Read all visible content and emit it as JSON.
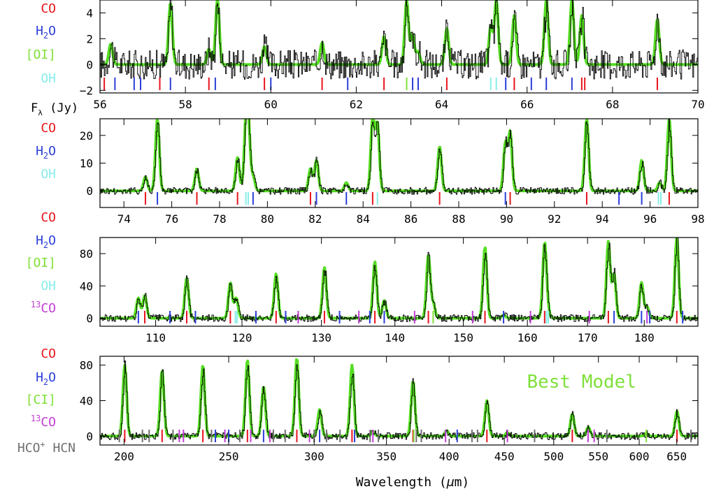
{
  "figure": {
    "flux_label": "F",
    "flux_label_sub": "λ",
    "flux_label_unit": " (Jy)",
    "xlabel_prefix": "Wavelength (",
    "xlabel_mu": "μ",
    "xlabel_suffix": "m)",
    "annotation": "Best Model"
  },
  "colors": {
    "co": "#e8141e",
    "h2o": "#2a3fd8",
    "oi": "#7fe03a",
    "oh": "#88eee8",
    "c13o": "#c33cd6",
    "hcn": "#707070",
    "observed": "#000000",
    "model": "#55dd22"
  },
  "chart_data": [
    {
      "type": "line",
      "panel": "56-70 um",
      "xlim": [
        56,
        70
      ],
      "ylim": [
        -2.2,
        5
      ],
      "xticks": [
        "56",
        "58",
        "60",
        "62",
        "64",
        "66",
        "68",
        "70"
      ],
      "yticks": [
        "−2",
        "0",
        "2",
        "4"
      ],
      "species_labels": [
        {
          "text": "CO",
          "color_key": "co"
        },
        {
          "text": "H",
          "sub": "2",
          "tail": "O",
          "color_key": "h2o"
        },
        {
          "text": "[OI]",
          "color_key": "oi"
        },
        {
          "text": "OH",
          "color_key": "oh"
        }
      ],
      "lines": [
        {
          "x": 56.25,
          "h": 1.6,
          "sp": "co"
        },
        {
          "x": 57.65,
          "h": 4.8,
          "sp": "co"
        },
        {
          "x": 58.55,
          "h": 1.2,
          "sp": "co"
        },
        {
          "x": 58.75,
          "h": 5.0,
          "sp": "co"
        },
        {
          "x": 59.85,
          "h": 1.4,
          "sp": "co"
        },
        {
          "x": 61.2,
          "h": 1.7,
          "sp": "co"
        },
        {
          "x": 62.65,
          "h": 2.2,
          "sp": "co"
        },
        {
          "x": 63.18,
          "h": 5.0,
          "sp": "oi"
        },
        {
          "x": 63.32,
          "h": 2.3,
          "sp": "h2o"
        },
        {
          "x": 63.45,
          "h": 1.0,
          "sp": "h2o"
        },
        {
          "x": 64.12,
          "h": 2.8,
          "sp": "co"
        },
        {
          "x": 65.15,
          "h": 3.0,
          "sp": "oh"
        },
        {
          "x": 65.28,
          "h": 5.0,
          "sp": "oh"
        },
        {
          "x": 65.7,
          "h": 3.8,
          "sp": "co"
        },
        {
          "x": 66.45,
          "h": 5.0,
          "sp": "h2o"
        },
        {
          "x": 67.05,
          "h": 5.0,
          "sp": "h2o"
        },
        {
          "x": 67.28,
          "h": 3.8,
          "sp": "co"
        },
        {
          "x": 69.05,
          "h": 3.5,
          "sp": "co"
        }
      ],
      "ticks": [
        {
          "x": 56.1,
          "sp": "co"
        },
        {
          "x": 56.35,
          "sp": "h2o"
        },
        {
          "x": 56.8,
          "sp": "h2o"
        },
        {
          "x": 56.95,
          "sp": "h2o"
        },
        {
          "x": 57.4,
          "sp": "co"
        },
        {
          "x": 57.65,
          "sp": "h2o"
        },
        {
          "x": 58.55,
          "sp": "co"
        },
        {
          "x": 58.7,
          "sp": "h2o"
        },
        {
          "x": 59.85,
          "sp": "co"
        },
        {
          "x": 60.0,
          "sp": "h2o"
        },
        {
          "x": 61.2,
          "sp": "co"
        },
        {
          "x": 61.8,
          "sp": "h2o"
        },
        {
          "x": 62.65,
          "sp": "co"
        },
        {
          "x": 63.18,
          "sp": "oi"
        },
        {
          "x": 63.32,
          "sp": "h2o"
        },
        {
          "x": 63.45,
          "sp": "h2o"
        },
        {
          "x": 64.12,
          "sp": "co"
        },
        {
          "x": 65.15,
          "sp": "oh"
        },
        {
          "x": 65.28,
          "sp": "oh"
        },
        {
          "x": 65.5,
          "sp": "h2o"
        },
        {
          "x": 65.7,
          "sp": "co"
        },
        {
          "x": 66.1,
          "sp": "h2o"
        },
        {
          "x": 66.45,
          "sp": "h2o"
        },
        {
          "x": 67.05,
          "sp": "h2o"
        },
        {
          "x": 67.28,
          "sp": "co"
        },
        {
          "x": 67.35,
          "sp": "co"
        },
        {
          "x": 69.05,
          "sp": "co"
        }
      ]
    },
    {
      "type": "line",
      "panel": "73-98 um",
      "xlim": [
        73,
        98
      ],
      "ylim": [
        -6,
        26
      ],
      "xticks": [
        "74",
        "76",
        "78",
        "80",
        "82",
        "84",
        "86",
        "88",
        "90",
        "92",
        "94",
        "96",
        "98"
      ],
      "yticks": [
        "0",
        "10",
        "20"
      ],
      "species_labels": [
        {
          "text": "CO",
          "color_key": "co"
        },
        {
          "text": "H",
          "sub": "2",
          "tail": "O",
          "color_key": "h2o"
        },
        {
          "text": "OH",
          "color_key": "oh"
        }
      ],
      "lines": [
        {
          "x": 74.9,
          "h": 5,
          "sp": "co"
        },
        {
          "x": 75.4,
          "h": 26,
          "sp": "h2o"
        },
        {
          "x": 77.05,
          "h": 8,
          "sp": "co"
        },
        {
          "x": 78.75,
          "h": 12,
          "sp": "co"
        },
        {
          "x": 79.1,
          "h": 20,
          "sp": "oh"
        },
        {
          "x": 79.2,
          "h": 21,
          "sp": "oh"
        },
        {
          "x": 79.4,
          "h": 5,
          "sp": "h2o"
        },
        {
          "x": 81.8,
          "h": 8,
          "sp": "co"
        },
        {
          "x": 82.05,
          "h": 11,
          "sp": "h2o"
        },
        {
          "x": 83.3,
          "h": 3,
          "sp": "h2o"
        },
        {
          "x": 84.4,
          "h": 26,
          "sp": "co"
        },
        {
          "x": 84.6,
          "h": 24,
          "sp": "oh"
        },
        {
          "x": 87.2,
          "h": 16,
          "sp": "co"
        },
        {
          "x": 89.95,
          "h": 17,
          "sp": "h2o"
        },
        {
          "x": 90.15,
          "h": 21,
          "sp": "co"
        },
        {
          "x": 93.35,
          "h": 26,
          "sp": "co"
        },
        {
          "x": 95.65,
          "h": 11,
          "sp": "h2o"
        },
        {
          "x": 96.4,
          "h": 3,
          "sp": "oh"
        },
        {
          "x": 96.8,
          "h": 26,
          "sp": "co"
        }
      ],
      "ticks": [
        {
          "x": 74.9,
          "sp": "co"
        },
        {
          "x": 75.4,
          "sp": "h2o"
        },
        {
          "x": 77.05,
          "sp": "co"
        },
        {
          "x": 78.75,
          "sp": "co"
        },
        {
          "x": 79.1,
          "sp": "oh"
        },
        {
          "x": 79.2,
          "sp": "oh"
        },
        {
          "x": 79.4,
          "sp": "h2o"
        },
        {
          "x": 81.8,
          "sp": "co"
        },
        {
          "x": 82.05,
          "sp": "h2o"
        },
        {
          "x": 83.3,
          "sp": "h2o"
        },
        {
          "x": 84.4,
          "sp": "co"
        },
        {
          "x": 84.6,
          "sp": "oh"
        },
        {
          "x": 87.2,
          "sp": "co"
        },
        {
          "x": 89.95,
          "sp": "h2o"
        },
        {
          "x": 90.15,
          "sp": "co"
        },
        {
          "x": 93.35,
          "sp": "co"
        },
        {
          "x": 94.7,
          "sp": "h2o"
        },
        {
          "x": 95.65,
          "sp": "h2o"
        },
        {
          "x": 96.35,
          "sp": "oh"
        },
        {
          "x": 96.45,
          "sp": "oh"
        },
        {
          "x": 96.8,
          "sp": "co"
        }
      ]
    },
    {
      "type": "line",
      "panel": "104-190 um",
      "xscale": "log",
      "xlim": [
        104,
        190
      ],
      "ylim": [
        -10,
        100
      ],
      "xticks": [
        "110",
        "120",
        "130",
        "140",
        "150",
        "160",
        "170",
        "180"
      ],
      "yticks": [
        "0",
        "40",
        "80"
      ],
      "species_labels": [
        {
          "text": "CO",
          "color_key": "co"
        },
        {
          "text": "H",
          "sub": "2",
          "tail": "O",
          "color_key": "h2o"
        },
        {
          "text": "[OI]",
          "color_key": "oi"
        },
        {
          "text": "OH",
          "color_key": "oh"
        },
        {
          "text": "CO",
          "sup": "13",
          "color_key": "c13o"
        }
      ],
      "lines": [
        {
          "x": 108.1,
          "h": 25,
          "sp": "h2o"
        },
        {
          "x": 108.8,
          "h": 28,
          "sp": "co"
        },
        {
          "x": 113.5,
          "h": 50,
          "sp": "co"
        },
        {
          "x": 118.6,
          "h": 44,
          "sp": "co"
        },
        {
          "x": 119.3,
          "h": 25,
          "sp": "oh"
        },
        {
          "x": 124.2,
          "h": 55,
          "sp": "co"
        },
        {
          "x": 130.4,
          "h": 63,
          "sp": "co"
        },
        {
          "x": 137.2,
          "h": 70,
          "sp": "co"
        },
        {
          "x": 138.5,
          "h": 22,
          "sp": "h2o"
        },
        {
          "x": 144.8,
          "h": 78,
          "sp": "co"
        },
        {
          "x": 145.5,
          "h": 18,
          "sp": "oi"
        },
        {
          "x": 153.3,
          "h": 88,
          "sp": "co"
        },
        {
          "x": 156.2,
          "h": 4,
          "sp": "h2o"
        },
        {
          "x": 162.8,
          "h": 92,
          "sp": "co"
        },
        {
          "x": 163.3,
          "h": 8,
          "sp": "oh"
        },
        {
          "x": 173.6,
          "h": 95,
          "sp": "co"
        },
        {
          "x": 174.6,
          "h": 55,
          "sp": "h2o"
        },
        {
          "x": 179.5,
          "h": 44,
          "sp": "h2o"
        },
        {
          "x": 180.5,
          "h": 14,
          "sp": "h2o"
        },
        {
          "x": 186.0,
          "h": 100,
          "sp": "co"
        }
      ],
      "ticks": [
        {
          "x": 108.1,
          "sp": "h2o"
        },
        {
          "x": 108.8,
          "sp": "co"
        },
        {
          "x": 111.6,
          "sp": "h2o"
        },
        {
          "x": 113.5,
          "sp": "co"
        },
        {
          "x": 114.5,
          "sp": "h2o"
        },
        {
          "x": 118.6,
          "sp": "co"
        },
        {
          "x": 119.2,
          "sp": "oh"
        },
        {
          "x": 119.4,
          "sp": "oh"
        },
        {
          "x": 121.7,
          "sp": "h2o"
        },
        {
          "x": 124.2,
          "sp": "co"
        },
        {
          "x": 125.4,
          "sp": "h2o"
        },
        {
          "x": 127.0,
          "sp": "c13o"
        },
        {
          "x": 130.4,
          "sp": "co"
        },
        {
          "x": 132.4,
          "sp": "h2o"
        },
        {
          "x": 135.0,
          "sp": "c13o"
        },
        {
          "x": 136.5,
          "sp": "h2o"
        },
        {
          "x": 137.2,
          "sp": "co"
        },
        {
          "x": 138.5,
          "sp": "h2o"
        },
        {
          "x": 142.8,
          "sp": "c13o"
        },
        {
          "x": 144.8,
          "sp": "co"
        },
        {
          "x": 145.5,
          "sp": "oi"
        },
        {
          "x": 151.4,
          "sp": "c13o"
        },
        {
          "x": 153.3,
          "sp": "co"
        },
        {
          "x": 156.2,
          "sp": "h2o"
        },
        {
          "x": 160.5,
          "sp": "c13o"
        },
        {
          "x": 162.8,
          "sp": "co"
        },
        {
          "x": 163.1,
          "sp": "oh"
        },
        {
          "x": 163.4,
          "sp": "oh"
        },
        {
          "x": 170.3,
          "sp": "c13o"
        },
        {
          "x": 173.6,
          "sp": "co"
        },
        {
          "x": 174.6,
          "sp": "h2o"
        },
        {
          "x": 179.5,
          "sp": "h2o"
        },
        {
          "x": 180.5,
          "sp": "c13o"
        },
        {
          "x": 181.0,
          "sp": "h2o"
        },
        {
          "x": 186.0,
          "sp": "co"
        },
        {
          "x": 187.1,
          "sp": "h2o"
        }
      ]
    },
    {
      "type": "line",
      "panel": "190-680 um",
      "xscale": "log",
      "xlim": [
        190,
        680
      ],
      "ylim": [
        -10,
        90
      ],
      "xticks": [
        "200",
        "250",
        "300",
        "350",
        "400",
        "450",
        "500",
        "550",
        "600",
        "650"
      ],
      "yticks": [
        "0",
        "40",
        "80"
      ],
      "xlabel_positioned": true,
      "annotation_color_key": "oi",
      "species_labels": [
        {
          "text": "CO",
          "color_key": "co"
        },
        {
          "text": "H",
          "sub": "2",
          "tail": "O",
          "color_key": "h2o"
        },
        {
          "text": "[CI]",
          "color_key": "oi"
        },
        {
          "text": "CO",
          "sup": "13",
          "color_key": "c13o"
        },
        {
          "text": "HCO",
          "sup_tail": "+",
          "after": " HCN",
          "color_key": "hcn"
        }
      ],
      "lines": [
        {
          "x": 200.3,
          "h": 80,
          "sp": "co"
        },
        {
          "x": 216.9,
          "h": 74,
          "sp": "co"
        },
        {
          "x": 236.6,
          "h": 80,
          "sp": "co"
        },
        {
          "x": 260.2,
          "h": 86,
          "sp": "co"
        },
        {
          "x": 269.3,
          "h": 56,
          "sp": "h2o"
        },
        {
          "x": 289.1,
          "h": 88,
          "sp": "co"
        },
        {
          "x": 303.5,
          "h": 30,
          "sp": "h2o"
        },
        {
          "x": 325.2,
          "h": 80,
          "sp": "co"
        },
        {
          "x": 340.0,
          "h": 5,
          "sp": "c13o"
        },
        {
          "x": 370.4,
          "h": 62,
          "sp": "co"
        },
        {
          "x": 398.0,
          "h": 6,
          "sp": "h2o"
        },
        {
          "x": 433.6,
          "h": 40,
          "sp": "co"
        },
        {
          "x": 453.0,
          "h": 4,
          "sp": "c13o"
        },
        {
          "x": 520.2,
          "h": 25,
          "sp": "co"
        },
        {
          "x": 538.3,
          "h": 10,
          "sp": "h2o"
        },
        {
          "x": 609.1,
          "h": 3,
          "sp": "oi"
        },
        {
          "x": 650.3,
          "h": 28,
          "sp": "co"
        }
      ],
      "ticks": [
        {
          "x": 198.0,
          "sp": "hcn"
        },
        {
          "x": 200.3,
          "sp": "co"
        },
        {
          "x": 208.0,
          "sp": "hcn"
        },
        {
          "x": 211.0,
          "sp": "hcn"
        },
        {
          "x": 216.9,
          "sp": "co"
        },
        {
          "x": 222.0,
          "sp": "hcn"
        },
        {
          "x": 225.0,
          "sp": "c13o"
        },
        {
          "x": 227.0,
          "sp": "c13o"
        },
        {
          "x": 236.6,
          "sp": "co"
        },
        {
          "x": 241.0,
          "sp": "hcn"
        },
        {
          "x": 243.0,
          "sp": "h2o"
        },
        {
          "x": 248.0,
          "sp": "c13o"
        },
        {
          "x": 250.0,
          "sp": "h2o"
        },
        {
          "x": 256.0,
          "sp": "hcn"
        },
        {
          "x": 260.2,
          "sp": "co"
        },
        {
          "x": 262.0,
          "sp": "c13o"
        },
        {
          "x": 269.3,
          "sp": "h2o"
        },
        {
          "x": 273.0,
          "sp": "c13o"
        },
        {
          "x": 275.0,
          "sp": "hcn"
        },
        {
          "x": 282.0,
          "sp": "hcn"
        },
        {
          "x": 289.1,
          "sp": "co"
        },
        {
          "x": 297.0,
          "sp": "c13o"
        },
        {
          "x": 300.0,
          "sp": "hcn"
        },
        {
          "x": 303.5,
          "sp": "h2o"
        },
        {
          "x": 308.0,
          "sp": "hcn"
        },
        {
          "x": 317.0,
          "sp": "hcn"
        },
        {
          "x": 325.2,
          "sp": "co"
        },
        {
          "x": 327.0,
          "sp": "h2o"
        },
        {
          "x": 338.0,
          "sp": "hcn"
        },
        {
          "x": 340.0,
          "sp": "c13o"
        },
        {
          "x": 344.0,
          "sp": "hcn"
        },
        {
          "x": 370.4,
          "sp": "co"
        },
        {
          "x": 371.0,
          "sp": "oi"
        },
        {
          "x": 373.0,
          "sp": "hcn"
        },
        {
          "x": 377.0,
          "sp": "hcn"
        },
        {
          "x": 397.0,
          "sp": "c13o"
        },
        {
          "x": 407.0,
          "sp": "h2o"
        },
        {
          "x": 420.0,
          "sp": "hcn"
        },
        {
          "x": 425.0,
          "sp": "hcn"
        },
        {
          "x": 433.6,
          "sp": "co"
        },
        {
          "x": 453.0,
          "sp": "c13o"
        },
        {
          "x": 480.0,
          "sp": "hcn"
        },
        {
          "x": 520.2,
          "sp": "co"
        },
        {
          "x": 538.0,
          "sp": "c13o"
        },
        {
          "x": 545.0,
          "sp": "c13o"
        },
        {
          "x": 560.0,
          "sp": "hcn"
        },
        {
          "x": 609.1,
          "sp": "oi"
        },
        {
          "x": 650.3,
          "sp": "co"
        },
        {
          "x": 670.0,
          "sp": "hcn"
        }
      ]
    }
  ]
}
